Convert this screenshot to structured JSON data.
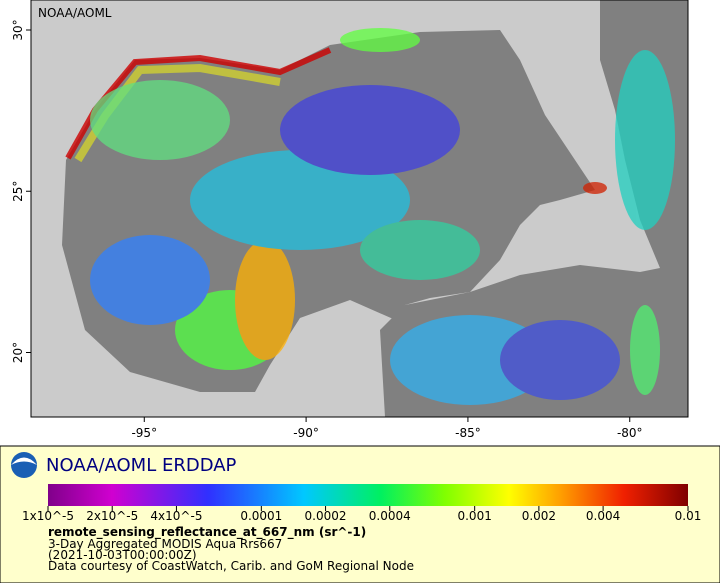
{
  "map": {
    "label": "NOAA/AOML",
    "lon_range": [
      -98.5,
      -78.2
    ],
    "lat_range": [
      18.0,
      30.93
    ],
    "lon_ticks": [
      {
        "value": -95,
        "label": "-95°"
      },
      {
        "value": -90,
        "label": "-90°"
      },
      {
        "value": -85,
        "label": "-85°"
      },
      {
        "value": -80,
        "label": "-80°"
      }
    ],
    "lat_ticks": [
      {
        "value": 20,
        "label": "20°"
      },
      {
        "value": 25,
        "label": "25°"
      },
      {
        "value": 30,
        "label": "30°"
      }
    ]
  },
  "legend": {
    "title": "NOAA/AOML ERDDAP",
    "colorbar_range": [
      1e-05,
      0.01
    ],
    "colorbar_scale": "log",
    "colorbar_ticks": [
      {
        "value": 1e-05,
        "label": "1x10^-5"
      },
      {
        "value": 2e-05,
        "label": "2x10^-5"
      },
      {
        "value": 4e-05,
        "label": "4x10^-5"
      },
      {
        "value": 0.0001,
        "label": "0.0001"
      },
      {
        "value": 0.0002,
        "label": "0.0002"
      },
      {
        "value": 0.0004,
        "label": "0.0004"
      },
      {
        "value": 0.001,
        "label": "0.001"
      },
      {
        "value": 0.002,
        "label": "0.002"
      },
      {
        "value": 0.004,
        "label": "0.004"
      },
      {
        "value": 0.01,
        "label": "0.01"
      }
    ],
    "variable": "remote_sensing_reflectance_at_667_nm (sr^-1)",
    "lines": [
      "3-Day Aggregated MODIS Aqua Rrs667",
      "(2021-10-03T00:00:00Z)",
      "Data courtesy of CoastWatch, Carib. and GoM Regional Node"
    ]
  }
}
